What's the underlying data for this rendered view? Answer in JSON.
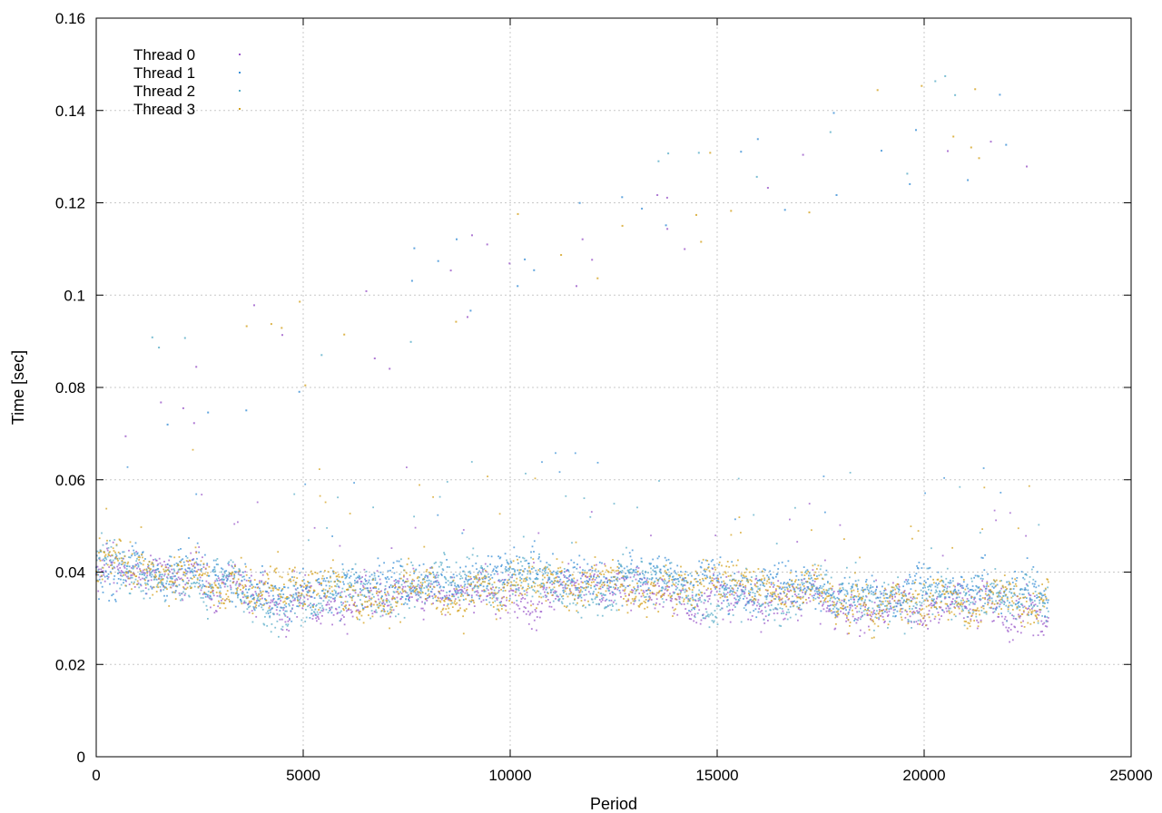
{
  "chart_data": {
    "type": "scatter",
    "title": "",
    "xlabel": "Period",
    "ylabel": "Time [sec]",
    "xlim": [
      0,
      25000
    ],
    "ylim": [
      0,
      0.16
    ],
    "xticks": [
      0,
      5000,
      10000,
      15000,
      20000,
      25000
    ],
    "xtick_labels": [
      "0",
      "5000",
      "10000",
      "15000",
      "20000",
      "25000"
    ],
    "yticks": [
      0,
      0.02,
      0.04,
      0.06,
      0.08,
      0.1,
      0.12,
      0.14,
      0.16
    ],
    "ytick_labels": [
      "0",
      "0.02",
      "0.04",
      "0.06",
      "0.08",
      "0.1",
      "0.12",
      "0.14",
      "0.16"
    ],
    "grid": true,
    "legend_position": "top-left",
    "x_range_of_points": [
      0,
      23000
    ],
    "series": [
      {
        "name": "Thread 0",
        "color": "#9b59c9",
        "typical_y_range": [
          0.025,
          0.05
        ],
        "x": [
          500,
          2500,
          4500,
          6500,
          8500,
          10500,
          12500,
          14500,
          16500,
          18500,
          20500,
          22500
        ],
        "y": [
          0.04,
          0.039,
          0.035,
          0.034,
          0.036,
          0.034,
          0.036,
          0.034,
          0.033,
          0.032,
          0.033,
          0.031
        ]
      },
      {
        "name": "Thread 1",
        "color": "#3a8fd6",
        "typical_y_range": [
          0.025,
          0.055
        ],
        "x": [
          500,
          2500,
          4500,
          6500,
          8500,
          10500,
          12500,
          14500,
          16500,
          18500,
          20500,
          22500
        ],
        "y": [
          0.042,
          0.04,
          0.036,
          0.037,
          0.038,
          0.04,
          0.038,
          0.038,
          0.037,
          0.036,
          0.036,
          0.035
        ]
      },
      {
        "name": "Thread 2",
        "color": "#5aaec8",
        "typical_y_range": [
          0.025,
          0.05
        ],
        "x": [
          500,
          2500,
          4500,
          6500,
          8500,
          10500,
          12500,
          14500,
          16500,
          18500,
          20500,
          22500
        ],
        "y": [
          0.041,
          0.039,
          0.034,
          0.035,
          0.037,
          0.038,
          0.036,
          0.036,
          0.035,
          0.034,
          0.035,
          0.033
        ]
      },
      {
        "name": "Thread 3",
        "color": "#d4a21f",
        "typical_y_range": [
          0.02,
          0.055
        ],
        "x": [
          500,
          2500,
          4500,
          6500,
          8500,
          10500,
          12500,
          14500,
          16500,
          18500,
          20500,
          22500
        ],
        "y": [
          0.042,
          0.04,
          0.036,
          0.035,
          0.037,
          0.038,
          0.037,
          0.037,
          0.036,
          0.035,
          0.036,
          0.035
        ]
      }
    ],
    "outlier_trend": {
      "description_points": [
        [
          400,
          0.091
        ],
        [
          2500,
          0.096
        ],
        [
          5000,
          0.1
        ],
        [
          7500,
          0.11
        ],
        [
          10000,
          0.12
        ],
        [
          12500,
          0.128
        ],
        [
          15000,
          0.136
        ],
        [
          17500,
          0.144
        ],
        [
          20000,
          0.146
        ],
        [
          22800,
          0.153
        ]
      ]
    }
  }
}
